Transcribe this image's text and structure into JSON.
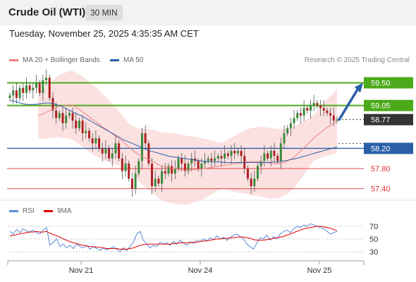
{
  "header": {
    "title": "Crude Oil (WTI)",
    "timeframe": "30 MIN"
  },
  "timestamp": "Tuesday, November 25, 2025 4:35:35 AM CET",
  "legend": {
    "ma20": {
      "label": "MA 20 + Bollinger Bands",
      "color": "#f08080"
    },
    "ma50": {
      "label": "MA 50",
      "color": "#2a5fa8"
    },
    "credit": "Research © 2025 Trading Central"
  },
  "rsi_legend": {
    "rsi": {
      "label": "RSI",
      "color": "#5b8bd6"
    },
    "ma9": {
      "label": "9MA",
      "color": "#e00000"
    }
  },
  "chart_data": [
    {
      "type": "candlestick",
      "y_range": [
        57.2,
        59.8
      ],
      "levels": [
        {
          "value": 59.5,
          "label": "59.50",
          "kind": "target",
          "color": "#4caa1a"
        },
        {
          "value": 59.05,
          "label": "59.05",
          "kind": "target",
          "color": "#4caa1a"
        },
        {
          "value": 58.77,
          "label": "58.77",
          "kind": "last",
          "color": "#333333"
        },
        {
          "value": 58.2,
          "label": "58.20",
          "kind": "pivot",
          "color": "#2a5fa8"
        },
        {
          "value": 57.8,
          "label": "57.80",
          "kind": "support",
          "color": "#e03030"
        },
        {
          "value": 57.4,
          "label": "57.40",
          "kind": "support",
          "color": "#e03030"
        }
      ],
      "x_ticks": [
        "Nov 21",
        "Nov 24",
        "Nov 25"
      ],
      "candle_closes": [
        59.25,
        59.35,
        59.2,
        59.4,
        59.3,
        59.45,
        59.35,
        59.4,
        59.5,
        59.3,
        59.55,
        59.6,
        59.2,
        58.95,
        58.8,
        58.9,
        58.7,
        58.85,
        58.9,
        58.75,
        58.6,
        58.75,
        58.5,
        58.55,
        58.4,
        58.3,
        58.4,
        58.2,
        58.1,
        58.2,
        58.0,
        58.1,
        58.3,
        58.0,
        57.75,
        57.9,
        57.6,
        57.4,
        57.7,
        57.95,
        58.5,
        58.3,
        57.9,
        57.45,
        57.6,
        57.5,
        57.75,
        57.7,
        57.85,
        57.7,
        57.8,
        58.0,
        57.9,
        57.75,
        57.9,
        58.0,
        57.95,
        57.8,
        57.9,
        57.95,
        58.0,
        57.95,
        58.0,
        58.05,
        58.0,
        58.1,
        58.05,
        58.15,
        58.1,
        58.15,
        58.05,
        57.8,
        57.6,
        57.45,
        57.6,
        57.85,
        57.95,
        58.1,
        58.0,
        58.15,
        58.05,
        57.95,
        58.3,
        58.5,
        58.6,
        58.7,
        58.8,
        58.9,
        58.85,
        59.0,
        58.95,
        59.05,
        59.1,
        59.05,
        59.0,
        58.95,
        58.9,
        58.85,
        58.75,
        58.77
      ],
      "ma20": [
        58.85,
        58.87,
        58.89,
        58.93,
        58.96,
        58.99,
        59.03,
        59.04,
        59.05,
        59.06,
        59.06,
        59.05,
        59.0,
        58.96,
        58.91,
        58.86,
        58.81,
        58.76,
        58.72,
        58.67,
        58.62,
        58.58,
        58.53,
        58.48,
        58.44,
        58.39,
        58.34,
        58.28,
        58.22,
        58.17,
        58.12,
        58.07,
        58.04,
        58.01,
        57.98,
        57.95,
        57.92,
        57.88,
        57.85,
        57.83,
        57.82,
        57.81,
        57.8,
        57.79,
        57.78,
        57.77,
        57.77,
        57.77,
        57.78,
        57.79,
        57.79,
        57.8,
        57.81,
        57.82,
        57.83,
        57.84,
        57.85,
        57.86,
        57.87,
        57.88,
        57.89,
        57.9,
        57.91,
        57.92,
        57.93,
        57.94,
        57.94,
        57.94,
        57.94,
        57.93,
        57.92,
        57.91,
        57.9,
        57.9,
        57.9,
        57.91,
        57.93,
        57.96,
        57.99,
        58.04,
        58.1,
        58.16,
        58.22,
        58.28,
        58.35,
        58.41,
        58.47,
        58.52,
        58.57,
        58.62,
        58.66,
        58.7,
        58.74
      ],
      "ma50": [
        59.15,
        59.14,
        59.12,
        59.1,
        59.08,
        59.07,
        59.07,
        59.07,
        59.08,
        59.09,
        59.1,
        59.1,
        59.09,
        59.07,
        59.05,
        59.02,
        58.98,
        58.95,
        58.91,
        58.88,
        58.85,
        58.81,
        58.77,
        58.73,
        58.69,
        58.65,
        58.61,
        58.57,
        58.53,
        58.49,
        58.45,
        58.41,
        58.37,
        58.34,
        58.31,
        58.28,
        58.25,
        58.22,
        58.19,
        58.16,
        58.14,
        58.12,
        58.1,
        58.08,
        58.06,
        58.04,
        58.03,
        58.02,
        58.01,
        58.0,
        57.99,
        57.98,
        57.97,
        57.96,
        57.95,
        57.94,
        57.94,
        57.93,
        57.93,
        57.93,
        57.92,
        57.92,
        57.92,
        57.92,
        57.92,
        57.92,
        57.92,
        57.92,
        57.92,
        57.92,
        57.92,
        57.92,
        57.92,
        57.92,
        57.93,
        57.93,
        57.94,
        57.95,
        57.96,
        57.98,
        57.99,
        58.01,
        58.03,
        58.05,
        58.07,
        58.09,
        58.11,
        58.13,
        58.15,
        58.17,
        58.19,
        58.21,
        58.23
      ]
    },
    {
      "type": "line",
      "name": "RSI panel",
      "y_ticks": [
        30,
        50,
        70
      ],
      "y_range": [
        20,
        80
      ],
      "series": [
        {
          "name": "RSI",
          "color": "#5b8bd6",
          "values": [
            62,
            58,
            65,
            60,
            66,
            63,
            61,
            64,
            60,
            58,
            64,
            68,
            40,
            45,
            50,
            38,
            42,
            36,
            40,
            35,
            42,
            38,
            36,
            40,
            34,
            38,
            35,
            32,
            36,
            33,
            35,
            38,
            34,
            30,
            36,
            32,
            38,
            45,
            58,
            62,
            48,
            42,
            36,
            40,
            38,
            45,
            42,
            44,
            40,
            46,
            42,
            48,
            44,
            40,
            46,
            43,
            48,
            46,
            50,
            47,
            52,
            49,
            55,
            50,
            53,
            48,
            52,
            56,
            58,
            54,
            50,
            42,
            38,
            34,
            44,
            52,
            50,
            56,
            48,
            54,
            50,
            58,
            62,
            64,
            60,
            66,
            70,
            68,
            72,
            70,
            74,
            72,
            70,
            68,
            66,
            62,
            58,
            60,
            62
          ]
        },
        {
          "name": "9MA",
          "color": "#e00000",
          "values": [
            55,
            56,
            57,
            58,
            59,
            60,
            61,
            61,
            62,
            61,
            61,
            62,
            59,
            57,
            55,
            53,
            50,
            48,
            46,
            44,
            43,
            41,
            40,
            39,
            38,
            38,
            37,
            37,
            36,
            35,
            35,
            35,
            35,
            34,
            34,
            34,
            35,
            36,
            38,
            40,
            41,
            42,
            42,
            42,
            42,
            42,
            42,
            42,
            42,
            43,
            43,
            44,
            44,
            44,
            44,
            45,
            45,
            46,
            47,
            47,
            48,
            49,
            50,
            50,
            51,
            51,
            52,
            52,
            53,
            53,
            53,
            52,
            51,
            49,
            48,
            48,
            48,
            49,
            50,
            51,
            52,
            53,
            54,
            56,
            58,
            60,
            62,
            64,
            66,
            67,
            68,
            69,
            70,
            70,
            69,
            68,
            67,
            65,
            63
          ]
        }
      ],
      "x_ticks": [
        "Nov 21",
        "Nov 24",
        "Nov 25"
      ]
    }
  ]
}
